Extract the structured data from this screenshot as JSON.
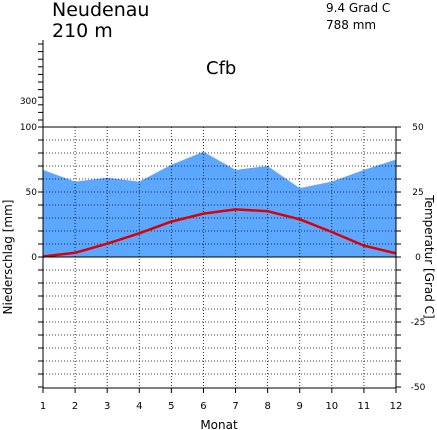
{
  "header": {
    "station": "Neudenau",
    "elevation": "210 m",
    "mean_temperature": "9.4 Grad C",
    "annual_precipitation": "788 mm",
    "climate_class": "Cfb"
  },
  "colors": {
    "precipitation": "#5ca7ff",
    "temperature": "#dd0000",
    "axes": "#000000"
  },
  "chart_data": {
    "type": "area",
    "xlabel": "Monat",
    "ylabel_left": "Niederschlag [mm]",
    "ylabel_right": "Temperatur [Grad C]",
    "x": [
      1,
      2,
      3,
      4,
      5,
      6,
      7,
      8,
      9,
      10,
      11,
      12
    ],
    "x_ticks": [
      "1",
      "2",
      "3",
      "4",
      "5",
      "6",
      "7",
      "8",
      "9",
      "10",
      "11",
      "12"
    ],
    "left_axis": {
      "range": [
        -100,
        100
      ],
      "tick_labels": [
        "0",
        "50",
        "100"
      ]
    },
    "left_axis_upper_tick": "300",
    "right_axis": {
      "range": [
        -50,
        50
      ],
      "tick_labels": [
        "-50",
        "-25",
        "0",
        "25",
        "50"
      ]
    },
    "grid": "dotted",
    "series": [
      {
        "type": "area",
        "axis": "left",
        "values": [
          67,
          58,
          61,
          58,
          71,
          81,
          67,
          70,
          53,
          58,
          67,
          75
        ]
      },
      {
        "type": "line",
        "axis": "right",
        "values": [
          0.2,
          1.6,
          5.1,
          9.1,
          13.6,
          16.7,
          18.3,
          17.6,
          14.5,
          9.6,
          4.4,
          1.4
        ]
      }
    ]
  }
}
